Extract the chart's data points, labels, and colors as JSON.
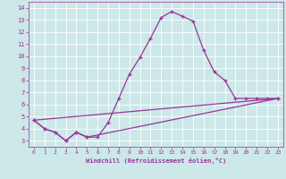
{
  "xlabel": "Windchill (Refroidissement éolien,°C)",
  "bg_color": "#cce8e8",
  "line_color": "#993399",
  "xlim": [
    -0.5,
    23.5
  ],
  "ylim": [
    2.5,
    14.5
  ],
  "xticks": [
    0,
    1,
    2,
    3,
    4,
    5,
    6,
    7,
    8,
    9,
    10,
    11,
    12,
    13,
    14,
    15,
    16,
    17,
    18,
    19,
    20,
    21,
    22,
    23
  ],
  "yticks": [
    3,
    4,
    5,
    6,
    7,
    8,
    9,
    10,
    11,
    12,
    13,
    14
  ],
  "curve1_x": [
    0,
    1,
    2,
    3,
    4,
    5,
    6,
    7,
    8,
    9,
    10,
    11,
    12,
    13,
    14,
    15,
    16,
    17,
    18,
    19,
    20,
    21,
    22,
    23
  ],
  "curve1_y": [
    4.7,
    4.0,
    3.7,
    3.0,
    3.7,
    3.3,
    3.3,
    4.5,
    6.5,
    8.5,
    9.9,
    11.5,
    13.2,
    13.7,
    13.3,
    12.9,
    10.5,
    8.7,
    8.0,
    6.5,
    6.5,
    6.5,
    6.5,
    6.5
  ],
  "curve2_x": [
    0,
    23
  ],
  "curve2_y": [
    4.7,
    6.5
  ],
  "curve3_x": [
    0,
    1,
    2,
    3,
    4,
    5,
    23
  ],
  "curve3_y": [
    4.7,
    4.0,
    3.7,
    3.0,
    3.7,
    3.3,
    6.5
  ]
}
